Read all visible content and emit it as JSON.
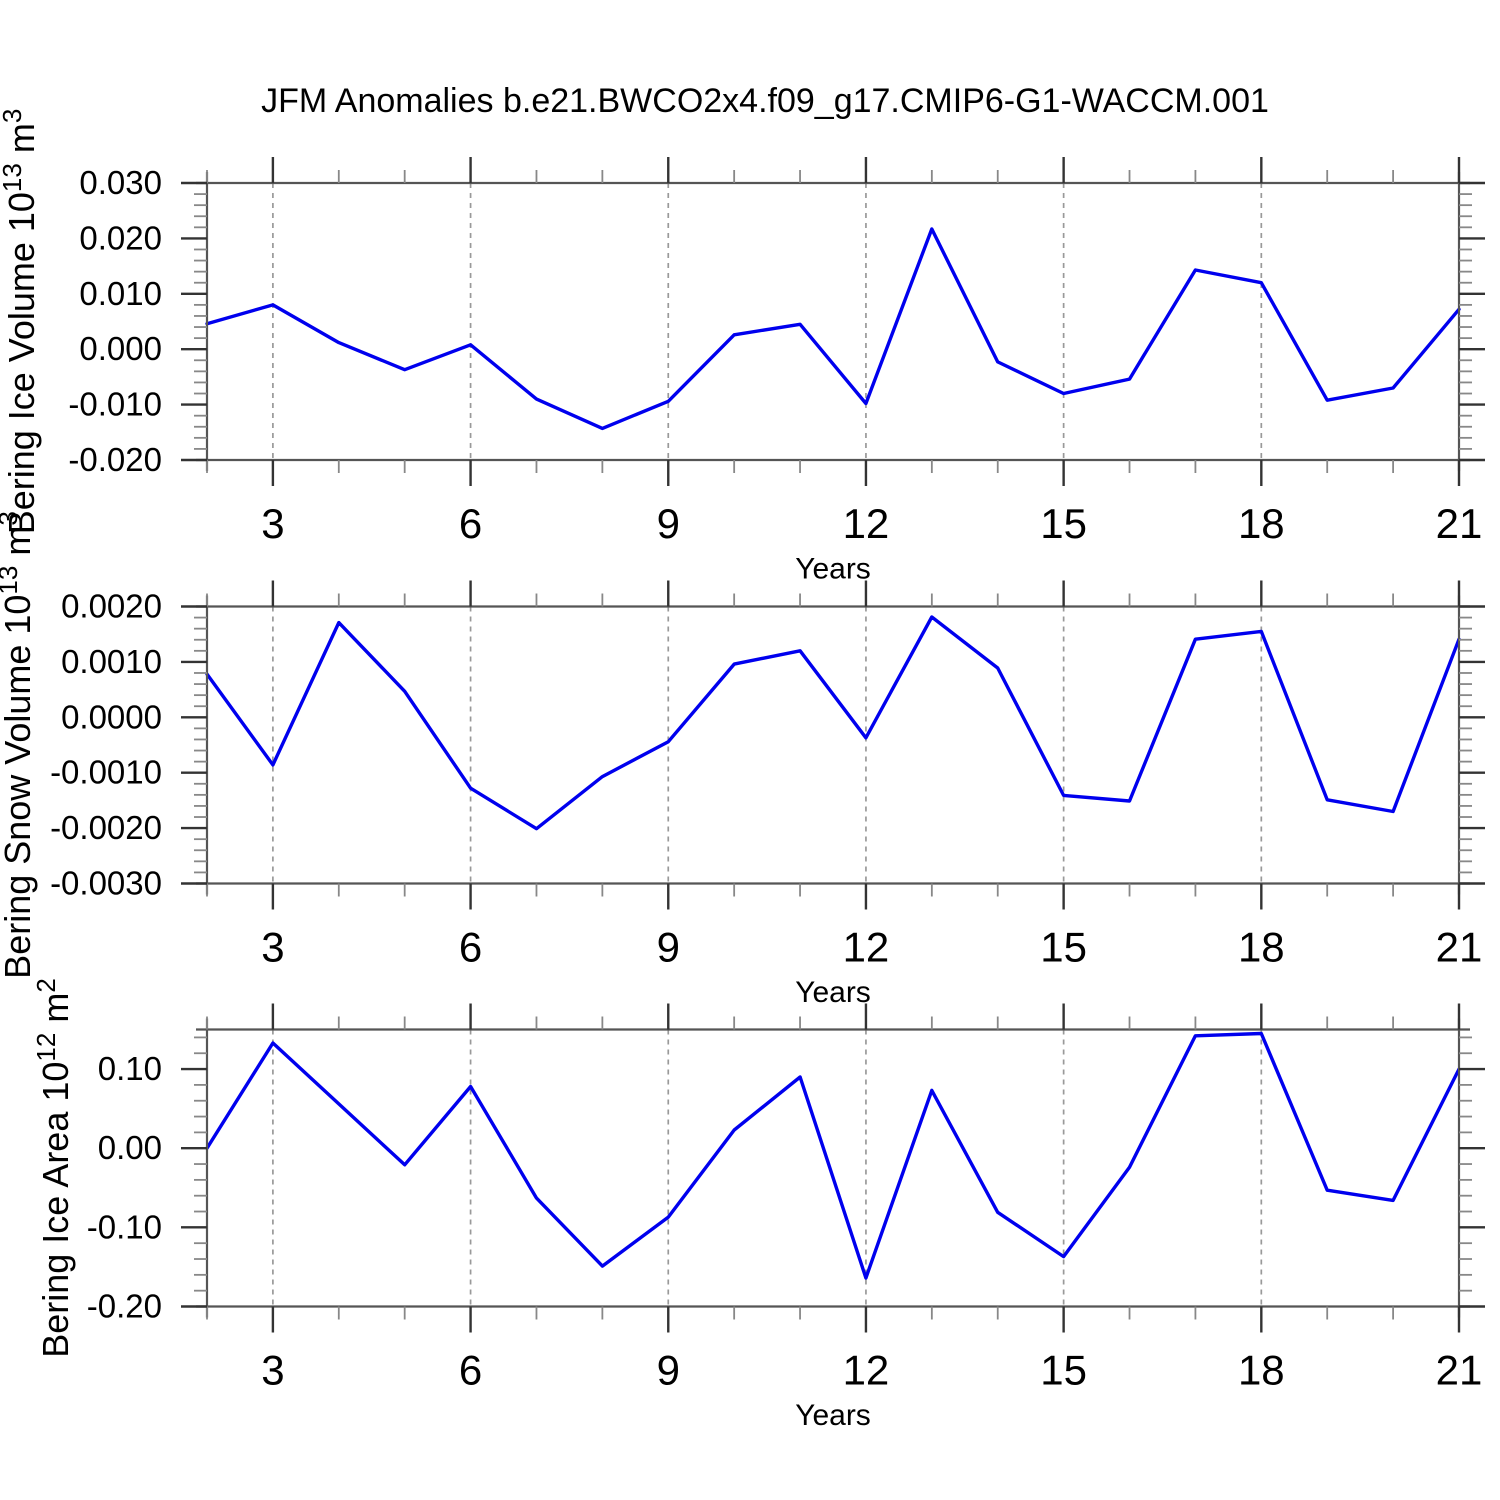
{
  "title": "JFM Anomalies b.e21.BWCO2x4.f09_g17.CMIP6-G1-WACCM.001",
  "colors": {
    "line": "#0000EE",
    "grid": "#999999",
    "axis": "#555555",
    "major_tick": "#333333",
    "minor_tick": "#888888",
    "text": "#000000"
  },
  "chart_data": [
    {
      "type": "line",
      "name": "bering-ice-volume",
      "ylabel_parts": [
        [
          "Bering Ice Volume 10",
          false
        ],
        [
          "13",
          true
        ],
        [
          " m",
          false
        ],
        [
          "3",
          true
        ]
      ],
      "xlabel": "Years",
      "x": [
        2,
        3,
        4,
        5,
        6,
        7,
        8,
        9,
        10,
        11,
        12,
        13,
        14,
        15,
        16,
        17,
        18,
        19,
        20,
        21
      ],
      "values": [
        0.0046,
        0.008,
        0.0012,
        -0.0037,
        0.0008,
        -0.009,
        -0.0143,
        -0.0094,
        0.0026,
        0.0045,
        -0.0098,
        0.0217,
        -0.0023,
        -0.008,
        -0.0054,
        0.0143,
        0.012,
        -0.0092,
        -0.007,
        0.0072
      ],
      "xlim": [
        2,
        21
      ],
      "ylim": [
        -0.02,
        0.03
      ],
      "yticks": [
        0.03,
        0.02,
        0.01,
        0.0,
        -0.01,
        -0.02
      ],
      "ytick_labels": [
        "0.030",
        "0.020",
        "0.010",
        "0.000",
        "-0.010",
        "-0.020"
      ],
      "y_minor_step": 0.002,
      "xticks": [
        3,
        6,
        9,
        12,
        15,
        18,
        21
      ],
      "xtick_labels": [
        "3",
        "6",
        "9",
        "12",
        "15",
        "18",
        "21"
      ],
      "x_minor_step": 1,
      "grid_x": [
        3,
        6,
        9,
        12,
        15,
        18
      ],
      "grid_on": true,
      "legend": null
    },
    {
      "type": "line",
      "name": "bering-snow-volume",
      "ylabel_parts": [
        [
          "Bering Snow Volume 10",
          false
        ],
        [
          "13",
          true
        ],
        [
          " m",
          false
        ],
        [
          "3",
          true
        ]
      ],
      "xlabel": "Years",
      "x": [
        2,
        3,
        4,
        5,
        6,
        7,
        8,
        9,
        10,
        11,
        12,
        13,
        14,
        15,
        16,
        17,
        18,
        19,
        20,
        21
      ],
      "values": [
        0.00078,
        -0.00086,
        0.00171,
        0.00047,
        -0.00128,
        -0.00201,
        -0.00107,
        -0.00044,
        0.00096,
        0.0012,
        -0.00037,
        0.00181,
        0.00089,
        -0.00141,
        -0.00151,
        0.00141,
        0.00155,
        -0.00149,
        -0.0017,
        0.00141
      ],
      "xlim": [
        2,
        21
      ],
      "ylim": [
        -0.003,
        0.002
      ],
      "yticks": [
        0.002,
        0.001,
        0.0,
        -0.001,
        -0.002,
        -0.003
      ],
      "ytick_labels": [
        "0.0020",
        "0.0010",
        "0.0000",
        "-0.0010",
        "-0.0020",
        "-0.0030"
      ],
      "y_minor_step": 0.0002,
      "xticks": [
        3,
        6,
        9,
        12,
        15,
        18,
        21
      ],
      "xtick_labels": [
        "3",
        "6",
        "9",
        "12",
        "15",
        "18",
        "21"
      ],
      "x_minor_step": 1,
      "grid_x": [
        3,
        6,
        9,
        12,
        15,
        18
      ],
      "grid_on": true,
      "legend": null
    },
    {
      "type": "line",
      "name": "bering-ice-area",
      "ylabel_parts": [
        [
          "Bering Ice Area 10",
          false
        ],
        [
          "12",
          true
        ],
        [
          " m",
          false
        ],
        [
          "2",
          true
        ]
      ],
      "xlabel": "Years",
      "x": [
        2,
        3,
        4,
        5,
        6,
        7,
        8,
        9,
        10,
        11,
        12,
        13,
        14,
        15,
        16,
        17,
        18,
        19,
        20,
        21
      ],
      "values": [
        0.0,
        0.133,
        0.056,
        -0.021,
        0.078,
        -0.063,
        -0.149,
        -0.087,
        0.023,
        0.09,
        -0.164,
        0.073,
        -0.081,
        -0.137,
        -0.024,
        0.142,
        0.145,
        -0.053,
        -0.066,
        0.1
      ],
      "xlim": [
        2,
        21
      ],
      "ylim": [
        -0.2,
        0.15
      ],
      "yticks": [
        0.1,
        0.0,
        -0.1,
        -0.2
      ],
      "ytick_labels": [
        "0.10",
        "0.00",
        "-0.10",
        "-0.20"
      ],
      "y_minor_step": 0.02,
      "xticks": [
        3,
        6,
        9,
        12,
        15,
        18,
        21
      ],
      "xtick_labels": [
        "3",
        "6",
        "9",
        "12",
        "15",
        "18",
        "21"
      ],
      "x_minor_step": 1,
      "grid_x": [
        3,
        6,
        9,
        12,
        15,
        18
      ],
      "grid_on": true,
      "legend": null
    }
  ]
}
